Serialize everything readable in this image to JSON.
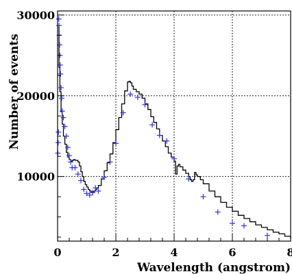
{
  "chart_data": {
    "type": "line",
    "xlabel": "Wavelength (angstrom)",
    "ylabel": "Number of events",
    "xlim": [
      0,
      8
    ],
    "ylim": [
      2000,
      30500
    ],
    "x_ticks": [
      0,
      2,
      4,
      6,
      8
    ],
    "y_ticks": [
      10000,
      20000,
      30000
    ],
    "grid": true,
    "colors": {
      "simulation": "#000000",
      "data": "#3030e0"
    },
    "series": [
      {
        "style": "step-line",
        "x": [
          0.02,
          0.05,
          0.08,
          0.12,
          0.16,
          0.2,
          0.25,
          0.3,
          0.35,
          0.4,
          0.45,
          0.5,
          0.55,
          0.6,
          0.65,
          0.7,
          0.75,
          0.8,
          0.85,
          0.9,
          0.95,
          1.0,
          1.05,
          1.1,
          1.15,
          1.2,
          1.25,
          1.3,
          1.35,
          1.4,
          1.5,
          1.6,
          1.7,
          1.8,
          1.9,
          2.0,
          2.1,
          2.2,
          2.3,
          2.4,
          2.45,
          2.5,
          2.55,
          2.6,
          2.7,
          2.8,
          2.9,
          3.0,
          3.1,
          3.2,
          3.3,
          3.4,
          3.5,
          3.6,
          3.7,
          3.8,
          3.9,
          4.0,
          4.05,
          4.1,
          4.15,
          4.2,
          4.3,
          4.4,
          4.5,
          4.55,
          4.6,
          4.65,
          4.7,
          4.75,
          4.8,
          4.9,
          5.0,
          5.2,
          5.4,
          5.6,
          5.8,
          6.0,
          6.2,
          6.4,
          6.6,
          6.8,
          7.0,
          7.2,
          7.4,
          7.6,
          7.8,
          8.0
        ],
        "y": [
          28500,
          23500,
          20500,
          18000,
          16500,
          15000,
          14000,
          13000,
          12400,
          12100,
          11900,
          12000,
          12100,
          12000,
          12000,
          11800,
          11300,
          10600,
          10000,
          9400,
          9000,
          8700,
          8400,
          8200,
          8100,
          8100,
          8200,
          8400,
          8600,
          8900,
          9700,
          10700,
          11700,
          12800,
          14200,
          15800,
          17300,
          19000,
          20600,
          21700,
          21800,
          21600,
          21200,
          20800,
          20500,
          20200,
          19700,
          19000,
          18300,
          17400,
          16700,
          15900,
          15100,
          14400,
          13700,
          12900,
          12400,
          11900,
          10300,
          11300,
          11500,
          11200,
          10800,
          10400,
          10000,
          9600,
          9400,
          9600,
          10500,
          10200,
          10000,
          9600,
          9100,
          8200,
          7500,
          6800,
          6200,
          5700,
          5200,
          4800,
          4400,
          4000,
          3700,
          3400,
          3100,
          2900,
          2600,
          2300
        ]
      },
      {
        "style": "markers",
        "x": [
          0.01,
          0.02,
          0.03,
          0.04,
          0.05,
          0.06,
          0.07,
          0.08,
          0.09,
          0.1,
          0.12,
          0.14,
          0.16,
          0.2,
          0.25,
          0.3,
          0.35,
          0.4,
          0.45,
          0.5,
          0.6,
          0.7,
          0.8,
          0.9,
          1.0,
          1.1,
          1.2,
          1.3,
          1.4,
          1.6,
          1.8,
          2.0,
          2.25,
          2.5,
          2.75,
          3.0,
          3.25,
          3.5,
          3.75,
          4.0,
          4.5,
          5.0,
          5.5,
          6.0,
          6.4,
          7.2
        ],
        "y": [
          12900,
          14200,
          15500,
          29500,
          28700,
          27500,
          26300,
          25000,
          23800,
          22700,
          21000,
          19700,
          18100,
          17300,
          16200,
          15000,
          13600,
          12600,
          11800,
          11100,
          11100,
          10300,
          9500,
          8400,
          7900,
          7700,
          8000,
          8600,
          8200,
          9900,
          11800,
          14100,
          17900,
          20200,
          19800,
          18900,
          16400,
          15100,
          14400,
          12200,
          9700,
          7500,
          5600,
          4200,
          3900,
          2700
        ]
      }
    ]
  }
}
